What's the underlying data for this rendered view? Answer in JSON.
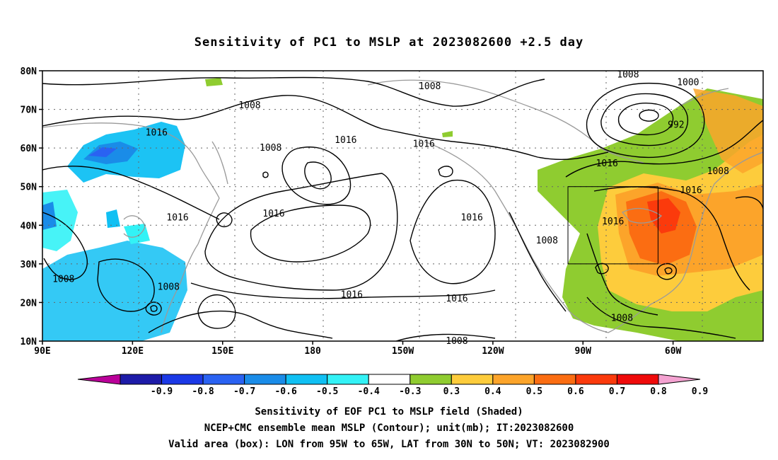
{
  "title": "Sensitivity of PC1 to MSLP at 2023082600 +2.5 day",
  "lat_ticks": [
    "80N",
    "70N",
    "60N",
    "50N",
    "40N",
    "30N",
    "20N",
    "10N"
  ],
  "lon_ticks": [
    "90E",
    "120E",
    "150E",
    "180",
    "150W",
    "120W",
    "90W",
    "60W"
  ],
  "contour_labels": [
    {
      "text": "1008",
      "lon": 159,
      "lat": 71
    },
    {
      "text": "1016",
      "lon": 128,
      "lat": 64
    },
    {
      "text": "1016",
      "lon": 135,
      "lat": 42
    },
    {
      "text": "1008",
      "lon": 97,
      "lat": 26
    },
    {
      "text": "1008",
      "lon": 132,
      "lat": 24
    },
    {
      "text": "1016",
      "lon": 167,
      "lat": 43
    },
    {
      "text": "1008",
      "lon": 166,
      "lat": 60
    },
    {
      "text": "1016",
      "lon": 193,
      "lat": 22
    },
    {
      "text": "1016",
      "lon": 191,
      "lat": 62
    },
    {
      "text": "1008",
      "lon": 219,
      "lat": 76
    },
    {
      "text": "1016",
      "lon": 217,
      "lat": 61
    },
    {
      "text": "1016",
      "lon": 233,
      "lat": 42
    },
    {
      "text": "1016",
      "lon": 228,
      "lat": 21
    },
    {
      "text": "1008",
      "lon": 228,
      "lat": 10
    },
    {
      "text": "1008",
      "lon": 258,
      "lat": 36
    },
    {
      "text": "1008",
      "lon": 285,
      "lat": 79
    },
    {
      "text": "1000",
      "lon": 305,
      "lat": 77
    },
    {
      "text": "992",
      "lon": 301,
      "lat": 66
    },
    {
      "text": "1016",
      "lon": 278,
      "lat": 56
    },
    {
      "text": "1008",
      "lon": 315,
      "lat": 54
    },
    {
      "text": "1016",
      "lon": 306,
      "lat": 49
    },
    {
      "text": "1016",
      "lon": 280,
      "lat": 41
    },
    {
      "text": "1008",
      "lon": 283,
      "lat": 16
    }
  ],
  "valid_box": {
    "lon_min": 265,
    "lon_max": 295,
    "lat_min": 30,
    "lat_max": 50
  },
  "colorbar": {
    "labels": [
      "-0.9",
      "-0.8",
      "-0.7",
      "-0.6",
      "-0.5",
      "-0.4",
      "-0.3",
      "0.3",
      "0.4",
      "0.5",
      "0.6",
      "0.7",
      "0.8",
      "0.9"
    ],
    "colors": [
      "#ba0099",
      "#1d1ba8",
      "#1b39e6",
      "#2a62f2",
      "#1a8ce8",
      "#10c0f3",
      "#33f2f6",
      "#ffffff",
      "#8fcc30",
      "#fdcc3c",
      "#fca42a",
      "#fb6d12",
      "#fb3a0c",
      "#ef0a0a",
      "#f4a2d1"
    ]
  },
  "captions": [
    "Sensitivity of EOF PC1 to MSLP field (Shaded)",
    "NCEP+CMC ensemble mean MSLP (Contour); unit(mb); IT:2023082600",
    "Valid area (box): LON from 95W to 65W, LAT from 30N to 50N; VT: 2023082900"
  ]
}
